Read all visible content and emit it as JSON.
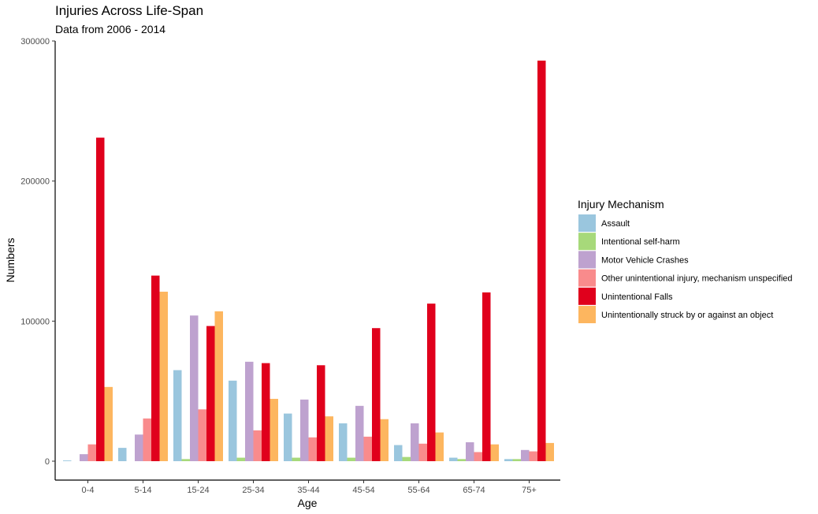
{
  "chart_data": {
    "type": "bar",
    "title": "Injuries Across Life-Span",
    "subtitle": "Data from 2006 - 2014",
    "xlabel": "Age",
    "ylabel": "Numbers",
    "ylim": [
      0,
      300000
    ],
    "yticks": [
      {
        "value": 0,
        "label": "0"
      },
      {
        "value": 100000,
        "label": "100000"
      },
      {
        "value": 200000,
        "label": "200000"
      },
      {
        "value": 300000,
        "label": "300000"
      }
    ],
    "grid": false,
    "legend_title": "Injury Mechanism",
    "legend_position": "right",
    "categories": [
      "0-4",
      "5-14",
      "15-24",
      "25-34",
      "35-44",
      "45-54",
      "55-64",
      "65-74",
      "75+"
    ],
    "series": [
      {
        "name": "Assault",
        "color": "#9ac6de",
        "values": [
          500,
          9500,
          65000,
          57500,
          34000,
          27000,
          11500,
          2500,
          1500
        ]
      },
      {
        "name": "Intentional self-harm",
        "color": "#a7d97a",
        "values": [
          0,
          0,
          1500,
          2500,
          2500,
          2500,
          3000,
          1500,
          1500
        ]
      },
      {
        "name": "Motor Vehicle Crashes",
        "color": "#bea2cf",
        "values": [
          5000,
          19000,
          104000,
          71000,
          44000,
          39500,
          27000,
          13500,
          8000
        ]
      },
      {
        "name": "Other unintentional injury, mechanism unspecified",
        "color": "#f98b8c",
        "values": [
          12000,
          30500,
          37000,
          22000,
          17000,
          17500,
          12500,
          6500,
          7000
        ]
      },
      {
        "name": "Unintentional Falls",
        "color": "#e0001c",
        "values": [
          231000,
          132500,
          96500,
          70000,
          68500,
          95000,
          112500,
          120500,
          286000
        ]
      },
      {
        "name": "Unintentionally struck by or against an object",
        "color": "#fdb65f",
        "values": [
          53000,
          121000,
          107000,
          44500,
          32000,
          30000,
          20500,
          12000,
          13000
        ]
      }
    ]
  }
}
